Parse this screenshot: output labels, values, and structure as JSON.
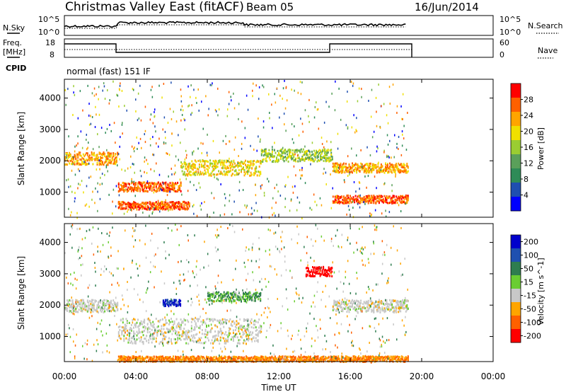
{
  "header": {
    "title": "Christmas Valley East (fitACF)",
    "beam": "Beam 05",
    "date": "16/Jun/2014"
  },
  "noise_panel": {
    "left_label": "N.Sky",
    "right_label": "N.Search",
    "ytick_top": "10^5",
    "ytick_bottom": "10^0"
  },
  "freq_panel": {
    "left_label_1": "Freq.",
    "left_label_2": "[MHz]",
    "left_tick_top": "18",
    "left_tick_bottom": "8",
    "right_label": "Nave",
    "right_tick_top": "60",
    "right_tick_bottom": "0"
  },
  "cpid": {
    "label": "CPID",
    "value": "normal (fast) 151 IF"
  },
  "xaxis": {
    "label": "Time UT",
    "ticks": [
      "00:00",
      "04:00",
      "08:00",
      "12:00",
      "16:00",
      "20:00",
      "00:00"
    ]
  },
  "colors": {
    "power_scale": [
      "#0000ff",
      "#1f4fb0",
      "#2e8b57",
      "#5aa05a",
      "#9acd32",
      "#f0e000",
      "#ffa500",
      "#ff6000",
      "#ff0000"
    ],
    "velocity_scale": [
      "#0000cc",
      "#1f50b0",
      "#2e7d4f",
      "#6acd32",
      "#c8c8c8",
      "#ffa500",
      "#ff6000",
      "#ff0000"
    ]
  },
  "chart_data": [
    {
      "type": "heatmap",
      "title": "",
      "xlabel": "Time UT",
      "ylabel": "Slant Range [km]",
      "xlim": [
        0,
        24
      ],
      "ylim": [
        200,
        4600
      ],
      "yticks": [
        1000,
        2000,
        3000,
        4000
      ],
      "colorbar": {
        "label": "Power [dB]",
        "range": [
          0,
          32
        ],
        "ticks": [
          4,
          8,
          12,
          16,
          20,
          24,
          28
        ]
      },
      "data_end_hour": 19.2,
      "echo_bands": [
        {
          "t0": 0.0,
          "t1": 3.0,
          "range_km": 2100,
          "width_km": 400,
          "power_db": 24
        },
        {
          "t0": 3.0,
          "t1": 6.5,
          "range_km": 1200,
          "width_km": 300,
          "power_db": 28
        },
        {
          "t0": 3.0,
          "t1": 7.0,
          "range_km": 600,
          "width_km": 250,
          "power_db": 28
        },
        {
          "t0": 6.5,
          "t1": 11.0,
          "range_km": 1800,
          "width_km": 500,
          "power_db": 20
        },
        {
          "t0": 11.0,
          "t1": 15.0,
          "range_km": 2200,
          "width_km": 400,
          "power_db": 16
        },
        {
          "t0": 15.0,
          "t1": 19.2,
          "range_km": 1800,
          "width_km": 300,
          "power_db": 24
        },
        {
          "t0": 15.0,
          "t1": 19.2,
          "range_km": 800,
          "width_km": 250,
          "power_db": 28
        }
      ]
    },
    {
      "type": "heatmap",
      "title": "",
      "xlabel": "Time UT",
      "ylabel": "Slant Range [km]",
      "xlim": [
        0,
        24
      ],
      "ylim": [
        200,
        4600
      ],
      "yticks": [
        1000,
        2000,
        3000,
        4000
      ],
      "colorbar": {
        "label": "Velocity [m s^-1]",
        "ticks": [
          200,
          100,
          50,
          15,
          -15,
          -50,
          -100,
          -200
        ]
      },
      "data_end_hour": 19.2,
      "echo_bands": [
        {
          "t0": 0.0,
          "t1": 3.0,
          "range_km": 2000,
          "width_km": 400,
          "velocity": 0
        },
        {
          "t0": 3.0,
          "t1": 11.0,
          "range_km": 1200,
          "width_km": 800,
          "velocity": 0
        },
        {
          "t0": 5.5,
          "t1": 6.5,
          "range_km": 2100,
          "width_km": 200,
          "velocity": 150
        },
        {
          "t0": 8.0,
          "t1": 11.0,
          "range_km": 2300,
          "width_km": 300,
          "velocity": 30
        },
        {
          "t0": 13.5,
          "t1": 15.0,
          "range_km": 3100,
          "width_km": 300,
          "velocity": -200
        },
        {
          "t0": 15.0,
          "t1": 19.2,
          "range_km": 2000,
          "width_km": 400,
          "velocity": 0
        },
        {
          "t0": 3.0,
          "t1": 19.2,
          "range_km": 300,
          "width_km": 200,
          "velocity": -50
        }
      ]
    }
  ]
}
